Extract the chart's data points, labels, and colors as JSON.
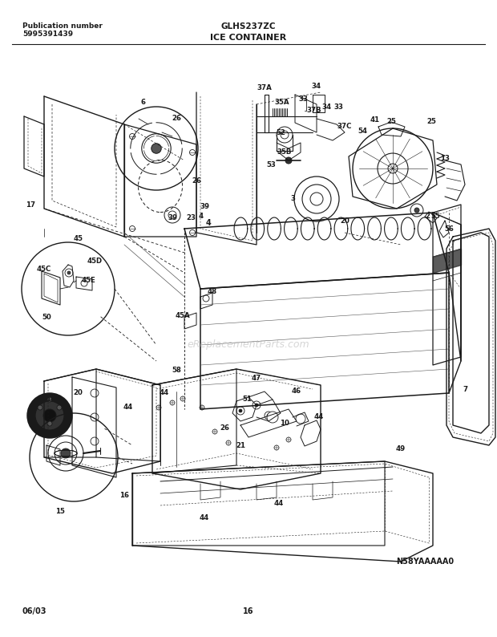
{
  "title": "GLHS237ZC",
  "subtitle": "ICE CONTAINER",
  "pub_label": "Publication number",
  "pub_number": "5995391439",
  "diagram_code": "N58YAAAAA0",
  "date_code": "06/03",
  "page_number": "16",
  "bg_color": "#ffffff",
  "line_color": "#1a1a1a",
  "watermark": "eReplacementParts.com",
  "fig_w": 6.2,
  "fig_h": 7.94,
  "dpi": 100
}
